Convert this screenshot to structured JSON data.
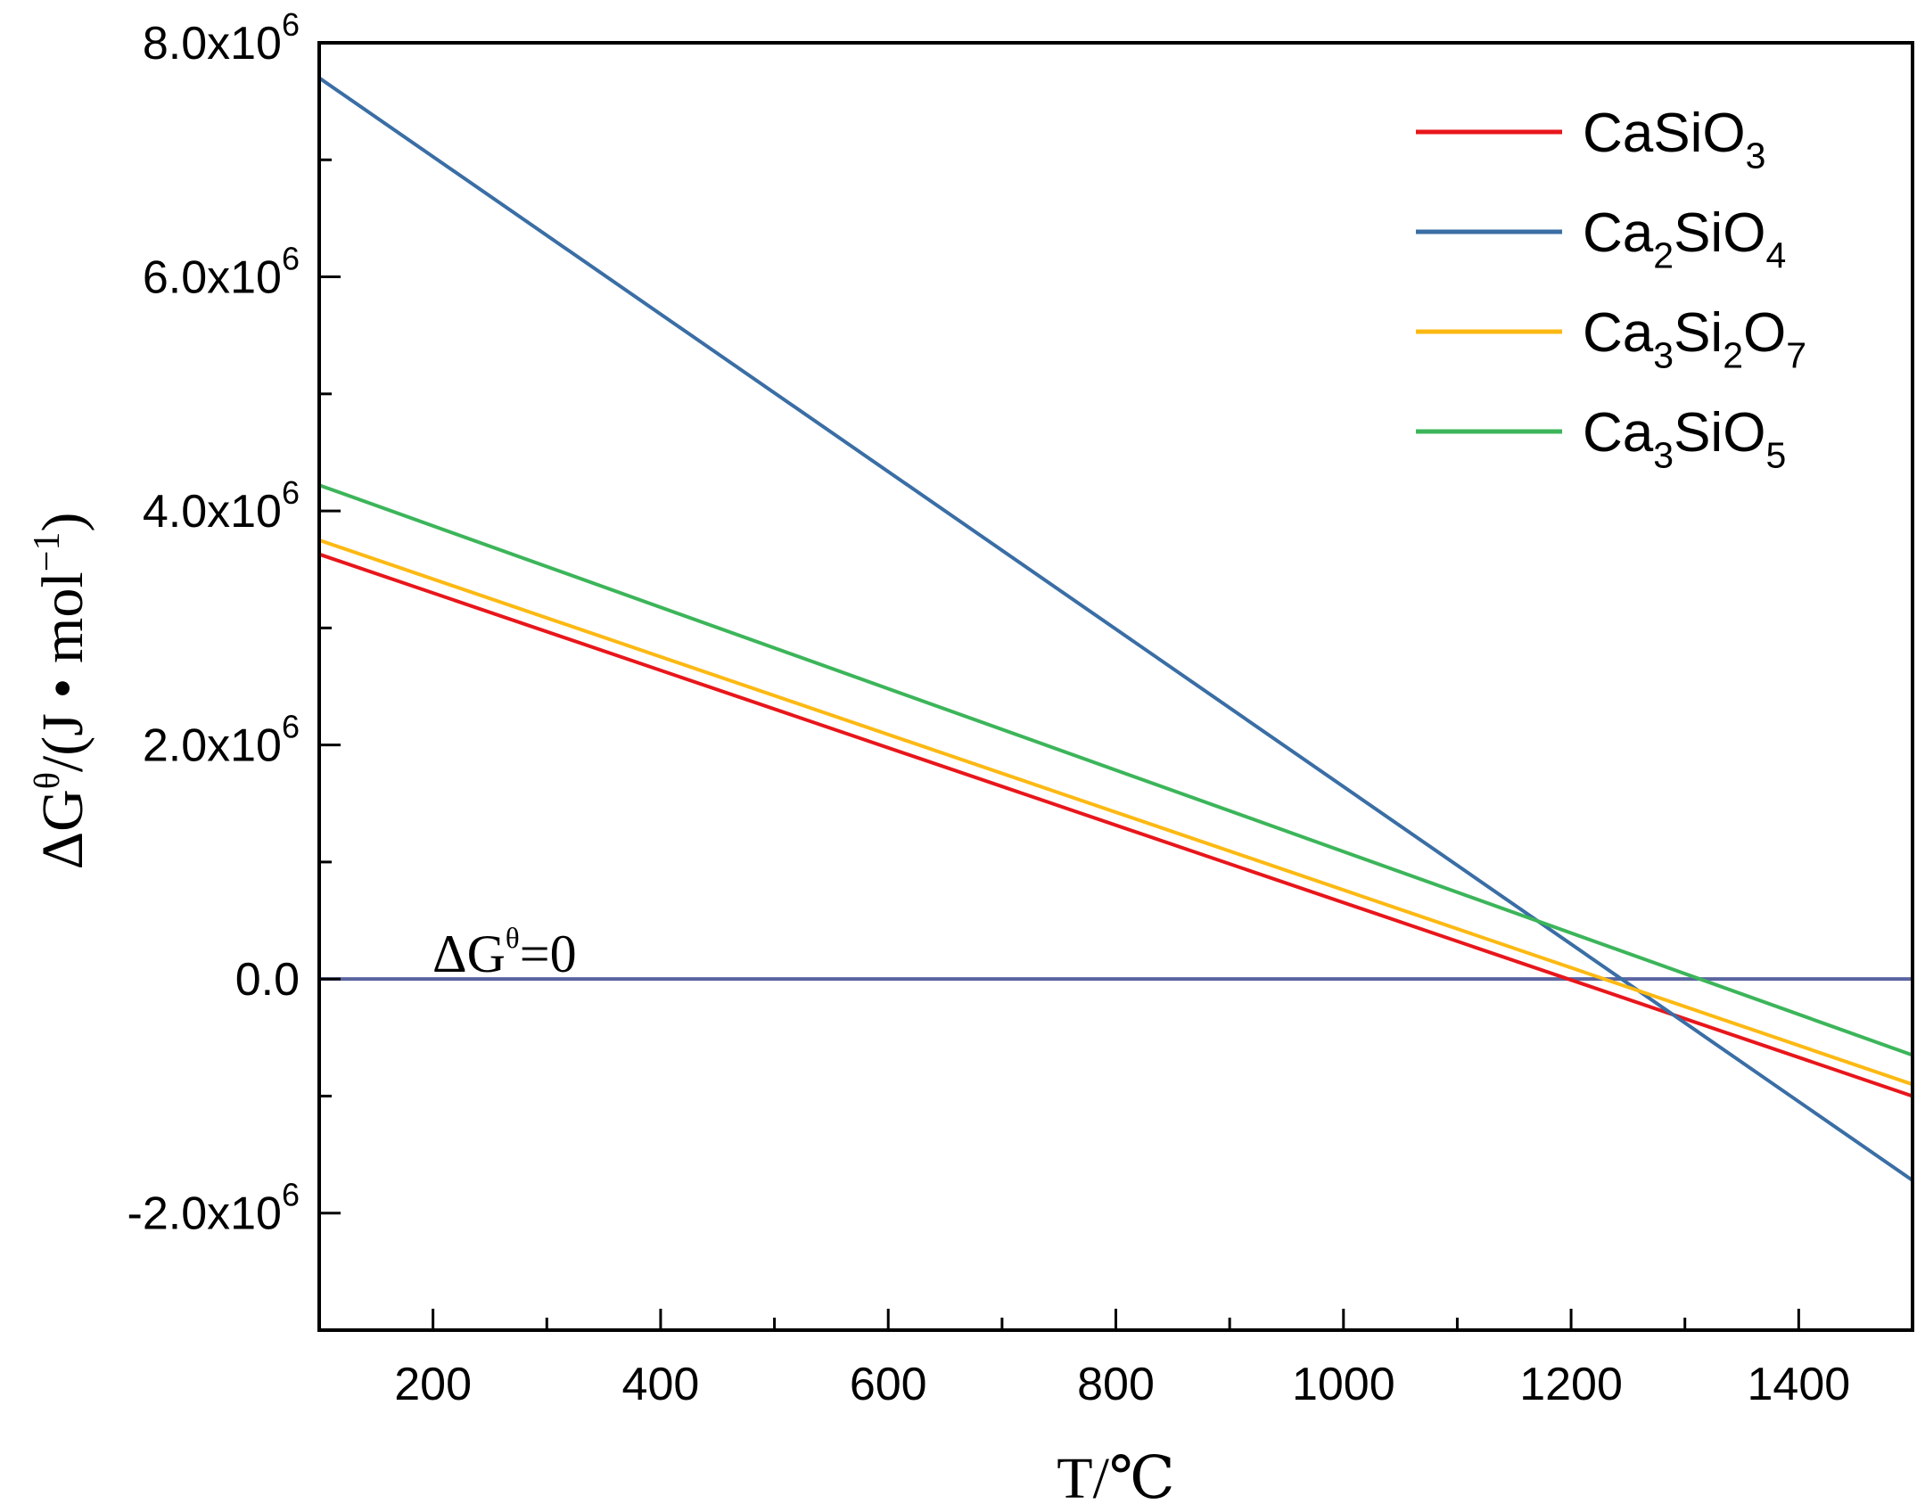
{
  "chart_data": {
    "type": "line",
    "title": "",
    "xlabel": "T/℃",
    "ylabel_parts": {
      "delta": "Δ",
      "g": "G",
      "theta": "θ",
      "unit_open": "/(J • mol",
      "unit_exp": "−1",
      "unit_close": ")"
    },
    "xlim": [
      100,
      1500
    ],
    "ylim": [
      -3000000,
      8000000
    ],
    "x_ticks": [
      200,
      400,
      600,
      800,
      1000,
      1200,
      1400
    ],
    "x_tick_labels": [
      "200",
      "400",
      "600",
      "800",
      "1000",
      "1200",
      "1400"
    ],
    "y_ticks": [
      -2000000,
      0,
      2000000,
      4000000,
      6000000,
      8000000
    ],
    "y_tick_labels": [
      {
        "mantissa": "-2.0x10",
        "exp": "6"
      },
      {
        "mantissa": "0.0",
        "exp": ""
      },
      {
        "mantissa": "2.0x10",
        "exp": "6"
      },
      {
        "mantissa": "4.0x10",
        "exp": "6"
      },
      {
        "mantissa": "6.0x10",
        "exp": "6"
      },
      {
        "mantissa": "8.0x10",
        "exp": "6"
      }
    ],
    "series": [
      {
        "name": "CaSiO3",
        "label_parts": [
          [
            "CaSiO",
            ""
          ],
          [
            "3",
            "sub"
          ]
        ],
        "color": "#e8161b",
        "x": [
          100,
          1500
        ],
        "y": [
          3630000,
          -1000000
        ]
      },
      {
        "name": "Ca2SiO4",
        "label_parts": [
          [
            "Ca",
            ""
          ],
          [
            "2",
            "sub"
          ],
          [
            "SiO",
            ""
          ],
          [
            "4",
            "sub"
          ]
        ],
        "color": "#3a6ea5",
        "x": [
          100,
          1500
        ],
        "y": [
          7700000,
          -1720000
        ]
      },
      {
        "name": "Ca3Si2O7",
        "label_parts": [
          [
            "Ca",
            ""
          ],
          [
            "3",
            "sub"
          ],
          [
            "Si",
            ""
          ],
          [
            "2",
            "sub"
          ],
          [
            "O",
            ""
          ],
          [
            "7",
            "sub"
          ]
        ],
        "color": "#fdb913",
        "x": [
          100,
          1500
        ],
        "y": [
          3750000,
          -900000
        ]
      },
      {
        "name": "Ca3SiO5",
        "label_parts": [
          [
            "Ca",
            ""
          ],
          [
            "3",
            "sub"
          ],
          [
            "SiO",
            ""
          ],
          [
            "5",
            "sub"
          ]
        ],
        "color": "#3cb55a",
        "x": [
          100,
          1500
        ],
        "y": [
          4220000,
          -650000
        ]
      }
    ],
    "reference_line": {
      "y": 0,
      "color": "#5a64a0",
      "label_parts": [
        [
          "ΔG",
          ""
        ],
        [
          "θ",
          "sup"
        ],
        [
          "=0",
          ""
        ]
      ]
    },
    "legend_position": "top-right",
    "grid": false
  }
}
